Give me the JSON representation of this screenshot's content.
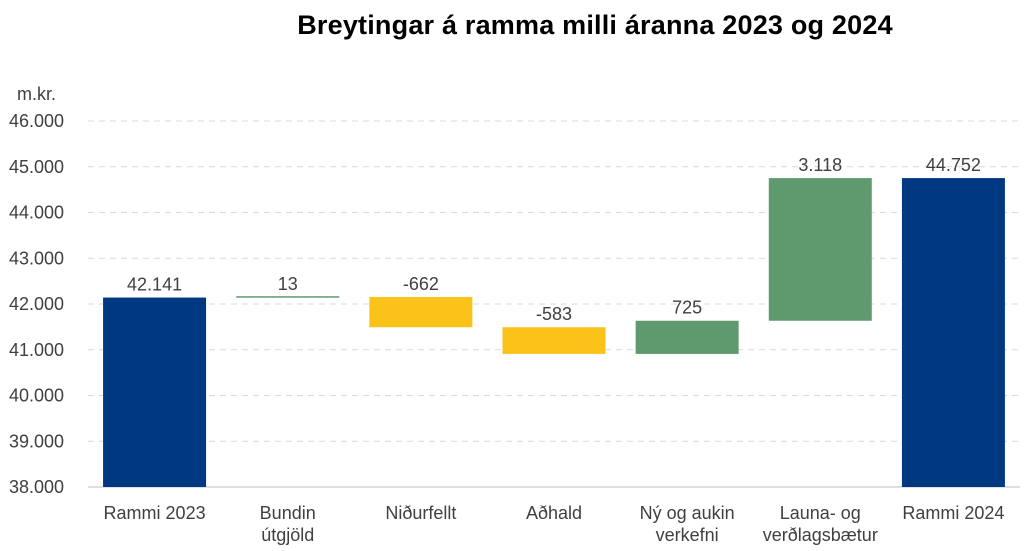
{
  "chart_data": {
    "type": "bar",
    "subtype": "waterfall",
    "title": "Breytingar á ramma milli áranna 2023 og 2024",
    "ylabel": "m.kr.",
    "xlabel": "",
    "ylim": [
      38000,
      46000
    ],
    "yticks": [
      38000,
      39000,
      40000,
      41000,
      42000,
      43000,
      44000,
      45000,
      46000
    ],
    "ytick_labels": [
      "38.000",
      "39.000",
      "40.000",
      "41.000",
      "42.000",
      "43.000",
      "44.000",
      "45.000",
      "46.000"
    ],
    "grid": true,
    "legend": "none",
    "colors": {
      "total": "#003882",
      "increase": "#5f9a6e",
      "decrease": "#fbc21a",
      "small_change_line": "#5f9a6e",
      "grid": "#d9d9d9",
      "axis": "#bfbfbf"
    },
    "categories": [
      [
        "Rammi 2023"
      ],
      [
        "Bundin",
        "útgjöld"
      ],
      [
        "Niðurfellt"
      ],
      [
        "Aðhald"
      ],
      [
        "Ný og aukin",
        "verkefni"
      ],
      [
        "Launa- og",
        "verðlagsbætur"
      ],
      [
        "Rammi 2024"
      ]
    ],
    "steps": [
      {
        "kind": "total",
        "value": 42141,
        "label": "42.141"
      },
      {
        "kind": "delta",
        "value": 13,
        "label": "13"
      },
      {
        "kind": "delta",
        "value": -662,
        "label": "-662"
      },
      {
        "kind": "delta",
        "value": -583,
        "label": "-583"
      },
      {
        "kind": "delta",
        "value": 725,
        "label": "725"
      },
      {
        "kind": "delta",
        "value": 3118,
        "label": "3.118"
      },
      {
        "kind": "total",
        "value": 44752,
        "label": "44.752"
      }
    ]
  }
}
